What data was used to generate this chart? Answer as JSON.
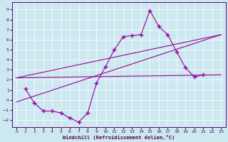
{
  "xlabel": "Windchill (Refroidissement éolien,°C)",
  "bg_color": "#cce8f0",
  "line_color": "#990099",
  "xlim": [
    -0.5,
    23.5
  ],
  "ylim": [
    -2.7,
    9.7
  ],
  "xticks": [
    0,
    1,
    2,
    3,
    4,
    5,
    6,
    7,
    8,
    9,
    10,
    11,
    12,
    13,
    14,
    15,
    16,
    17,
    18,
    19,
    20,
    21,
    22,
    23
  ],
  "yticks": [
    -2,
    -1,
    0,
    1,
    2,
    3,
    4,
    5,
    6,
    7,
    8,
    9
  ],
  "main_x": [
    1,
    2,
    3,
    4,
    5,
    6,
    7,
    8,
    9,
    10,
    11,
    12,
    13,
    14,
    15,
    16,
    17,
    18,
    19,
    20,
    21
  ],
  "main_y": [
    1.1,
    -0.3,
    -1.1,
    -1.1,
    -1.3,
    -1.8,
    -2.2,
    -1.3,
    1.7,
    3.3,
    5.0,
    6.3,
    6.4,
    6.5,
    8.9,
    7.3,
    6.5,
    4.8,
    3.2,
    2.3,
    2.5
  ],
  "trend1_x": [
    0,
    23
  ],
  "trend1_y": [
    2.2,
    2.5
  ],
  "trend2_x": [
    0,
    23
  ],
  "trend2_y": [
    -0.2,
    6.5
  ],
  "trend3_x": [
    0,
    23
  ],
  "trend3_y": [
    2.2,
    6.5
  ]
}
